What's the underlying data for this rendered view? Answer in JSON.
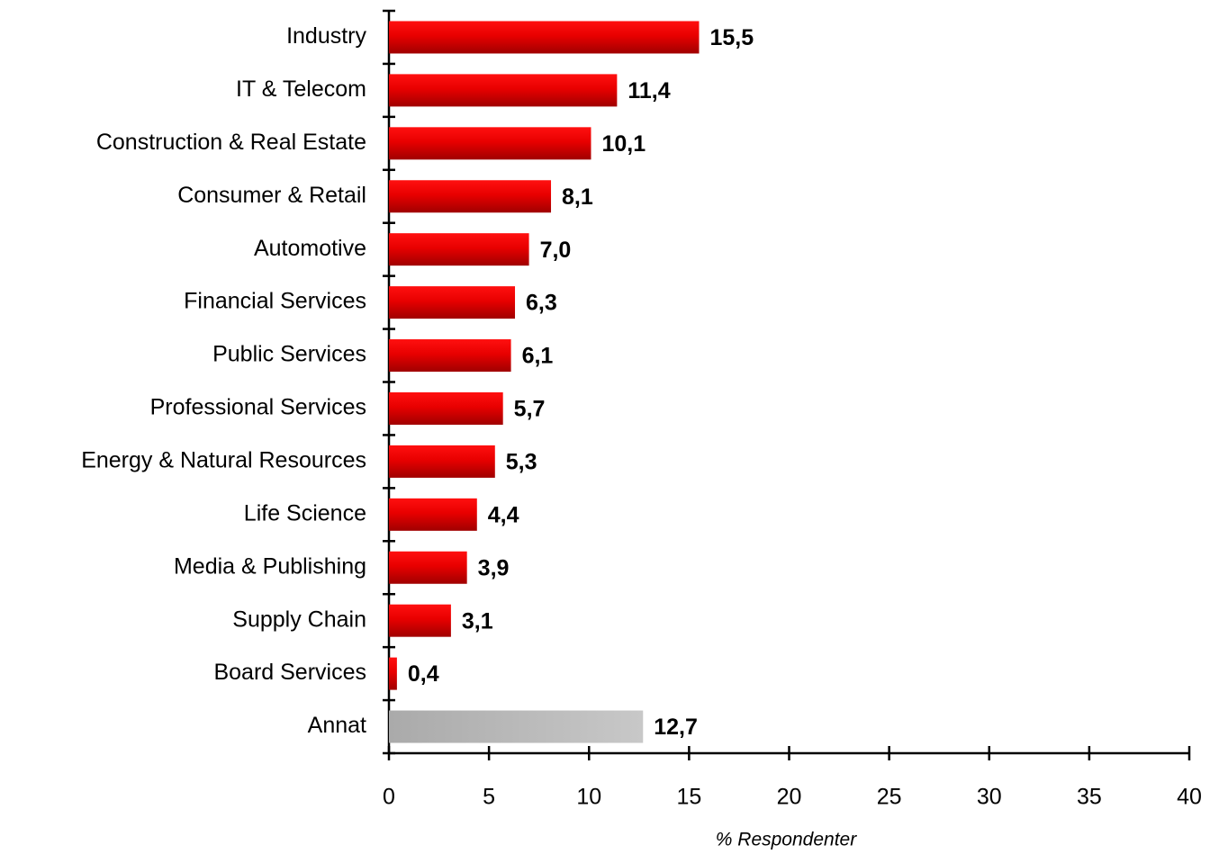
{
  "chart_data": {
    "type": "barh",
    "categories": [
      "Industry",
      "IT & Telecom",
      "Construction & Real Estate",
      "Consumer & Retail",
      "Automotive",
      "Financial Services",
      "Public Services",
      "Professional Services",
      "Energy & Natural Resources",
      "Life Science",
      "Media & Publishing",
      "Supply Chain",
      "Board Services",
      "Annat"
    ],
    "values": [
      15.5,
      11.4,
      10.1,
      8.1,
      7.0,
      6.3,
      6.1,
      5.7,
      5.3,
      4.4,
      3.9,
      3.1,
      0.4,
      12.7
    ],
    "value_labels": [
      "15,5",
      "11,4",
      "10,1",
      "8,1",
      "7,0",
      "6,3",
      "6,1",
      "5,7",
      "5,3",
      "4,4",
      "3,9",
      "3,1",
      "0,4",
      "12,7"
    ],
    "colors": [
      "#e80000",
      "#e80000",
      "#e80000",
      "#e80000",
      "#e80000",
      "#e80000",
      "#e80000",
      "#e80000",
      "#e80000",
      "#e80000",
      "#e80000",
      "#e80000",
      "#e80000",
      "#aaaaaa"
    ],
    "xlabel": "% Respondenter",
    "xlim": [
      0,
      40
    ],
    "xticks": [
      0,
      5,
      10,
      15,
      20,
      25,
      30,
      35,
      40
    ],
    "grid": false
  }
}
